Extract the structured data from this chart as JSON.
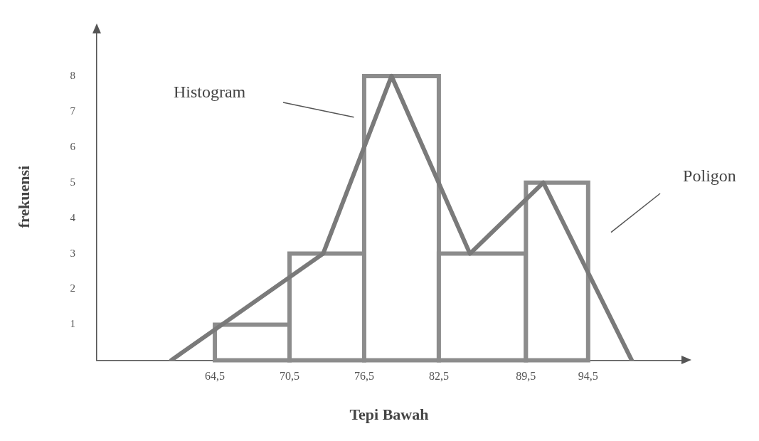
{
  "chart_data": {
    "type": "histogram",
    "xlabel": "Tepi Bawah",
    "ylabel": "frekuensi",
    "bins": [
      64.5,
      70.5,
      76.5,
      82.5,
      89.5,
      94.5
    ],
    "values": [
      1,
      3,
      8,
      3,
      5
    ],
    "color": "#8c8c8c",
    "series": [
      {
        "type": "line",
        "x": [
          61,
          73.2,
          78.7,
          85,
          90.9,
          98
        ],
        "values": [
          0,
          3,
          8,
          3,
          5,
          0
        ],
        "color": "#7a7a7a"
      }
    ],
    "xlim": [
      55,
      102
    ],
    "ylim": [
      0,
      9.2
    ],
    "xticks": [
      {
        "value": 64.5,
        "label": "64,5"
      },
      {
        "value": 70.5,
        "label": "70,5"
      },
      {
        "value": 76.5,
        "label": "76,5"
      },
      {
        "value": 82.5,
        "label": "82,5"
      },
      {
        "value": 89.5,
        "label": "89,5"
      },
      {
        "value": 94.5,
        "label": "94,5"
      }
    ],
    "yticks": [
      1,
      2,
      3,
      4,
      5,
      6,
      7,
      8
    ],
    "annotations": [
      "Histogram",
      "Poligon"
    ],
    "grid": false,
    "legend": false,
    "marker": "none"
  }
}
